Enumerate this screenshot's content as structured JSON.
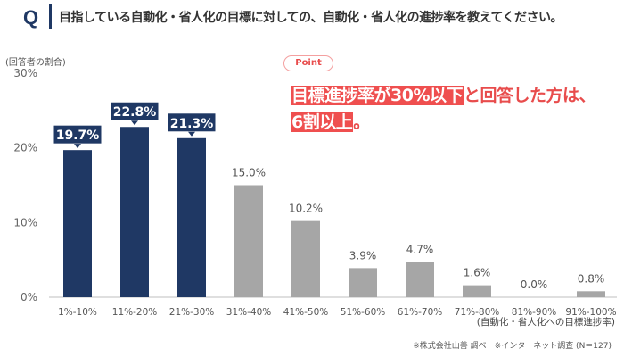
{
  "header": {
    "q_label": "Q",
    "question": "目指している自動化・省人化の目標に対しての、自動化・省人化の進捗率を教えてください。"
  },
  "point": {
    "tag": "Point",
    "highlight1": "目標進捗率が30%以下",
    "text1": "と回答した方は、",
    "highlight2": "6割以上",
    "text2": "。"
  },
  "footnote": "※株式会社山善 調べ　※インターネット調査 (N＝127)",
  "colors": {
    "highlight": "#1f3864",
    "normal": "#a6a6a6",
    "accent": "#ef4f4f"
  },
  "chart_data": {
    "type": "bar",
    "ylabel": "(回答者の割合)",
    "xlabel": "(自動化・省人化への目標進捗率)",
    "categories": [
      "1%-10%",
      "11%-20%",
      "21%-30%",
      "31%-40%",
      "41%-50%",
      "51%-60%",
      "61%-70%",
      "71%-80%",
      "81%-90%",
      "91%-100%"
    ],
    "values": [
      19.7,
      22.8,
      21.3,
      15.0,
      10.2,
      3.9,
      4.7,
      1.6,
      0.0,
      0.8
    ],
    "highlighted": [
      true,
      true,
      true,
      false,
      false,
      false,
      false,
      false,
      false,
      false
    ],
    "value_labels": [
      "19.7%",
      "22.8%",
      "21.3%",
      "15.0%",
      "10.2%",
      "3.9%",
      "4.7%",
      "1.6%",
      "0.0%",
      "0.8%"
    ],
    "yticks": [
      "0%",
      "10%",
      "20%",
      "30%"
    ],
    "ytick_values": [
      0,
      10,
      20,
      30
    ],
    "ylim": [
      0,
      30
    ],
    "grid": false
  }
}
